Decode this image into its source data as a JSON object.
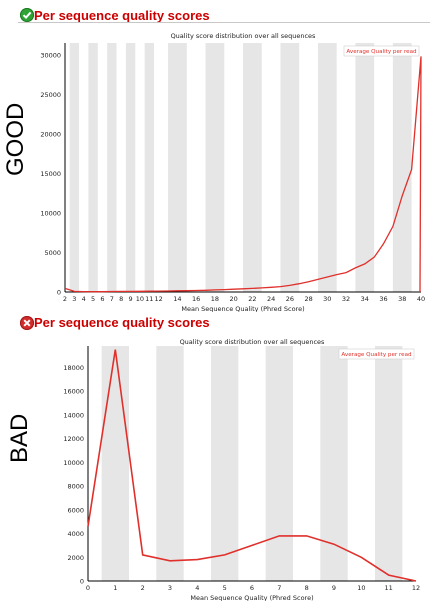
{
  "panels": {
    "good": {
      "side_label": "GOOD",
      "heading": "Per sequence quality scores",
      "status_icon": "pass-check-icon",
      "status_color": "#2fa336"
    },
    "bad": {
      "side_label": "BAD",
      "heading": "Per sequence quality scores",
      "status_icon": "fail-cross-icon",
      "status_color": "#d32b2b"
    }
  },
  "colors": {
    "line": "#e0302b",
    "stripe": "#e6e6e6",
    "heading": "#cc0000"
  },
  "chart_data": [
    {
      "type": "line",
      "title": "Quality score distribution over all sequences",
      "xlabel": "Mean Sequence Quality (Phred Score)",
      "ylabel": "",
      "legend": "Average Quality per read",
      "legend_position": "top-right",
      "grid": "alternating vertical stripes",
      "xlim": [
        2,
        40
      ],
      "ylim": [
        0,
        31500
      ],
      "x_ticks": [
        "2",
        "3",
        "4",
        "5",
        "6",
        "7",
        "8",
        "9",
        "10",
        "11",
        "12",
        "14",
        "16",
        "18",
        "20",
        "22",
        "24",
        "26",
        "28",
        "30",
        "32",
        "34",
        "36",
        "38",
        "40"
      ],
      "x_tick_values": [
        2,
        3,
        4,
        5,
        6,
        7,
        8,
        9,
        10,
        11,
        12,
        14,
        16,
        18,
        20,
        22,
        24,
        26,
        28,
        30,
        32,
        34,
        36,
        38,
        40
      ],
      "y_ticks": [
        "0",
        "5000",
        "10000",
        "15000",
        "20000",
        "25000",
        "30000"
      ],
      "y_tick_values": [
        0,
        5000,
        10000,
        15000,
        20000,
        25000,
        30000
      ],
      "series": [
        {
          "name": "Average Quality per read",
          "x": [
            2,
            3,
            4,
            5,
            6,
            7,
            8,
            9,
            10,
            11,
            12,
            13,
            14,
            15,
            16,
            17,
            18,
            19,
            20,
            21,
            22,
            23,
            24,
            25,
            26,
            27,
            28,
            29,
            30,
            31,
            32,
            33,
            34,
            35,
            36,
            37,
            38,
            39,
            40
          ],
          "y": [
            450,
            80,
            50,
            40,
            40,
            60,
            70,
            80,
            90,
            100,
            110,
            130,
            150,
            170,
            190,
            220,
            260,
            300,
            350,
            400,
            450,
            520,
            600,
            680,
            830,
            1050,
            1300,
            1600,
            1900,
            2200,
            2450,
            3050,
            3550,
            4400,
            6100,
            8300,
            12200,
            15500,
            29800
          ]
        }
      ],
      "series_tail": {
        "x": 41,
        "y": 0
      }
    },
    {
      "type": "line",
      "title": "Quality score distribution over all sequences",
      "xlabel": "Mean Sequence Quality (Phred Score)",
      "ylabel": "",
      "legend": "Average Quality per read",
      "legend_position": "top-right",
      "grid": "alternating vertical stripes",
      "xlim": [
        0,
        12
      ],
      "ylim": [
        0,
        19800
      ],
      "x_ticks": [
        "0",
        "1",
        "2",
        "3",
        "4",
        "5",
        "6",
        "7",
        "8",
        "9",
        "10",
        "11",
        "12"
      ],
      "x_tick_values": [
        0,
        1,
        2,
        3,
        4,
        5,
        6,
        7,
        8,
        9,
        10,
        11,
        12
      ],
      "y_ticks": [
        "0",
        "2000",
        "4000",
        "6000",
        "8000",
        "10000",
        "12000",
        "14000",
        "16000",
        "18000"
      ],
      "y_tick_values": [
        0,
        2000,
        4000,
        6000,
        8000,
        10000,
        12000,
        14000,
        16000,
        18000
      ],
      "series": [
        {
          "name": "Average Quality per read",
          "x": [
            0,
            1,
            2,
            3,
            4,
            5,
            6,
            7,
            8,
            9,
            10,
            11,
            12
          ],
          "y": [
            4600,
            19500,
            2200,
            1700,
            1800,
            2200,
            3000,
            3800,
            3800,
            3100,
            2000,
            500,
            0
          ]
        }
      ]
    }
  ]
}
